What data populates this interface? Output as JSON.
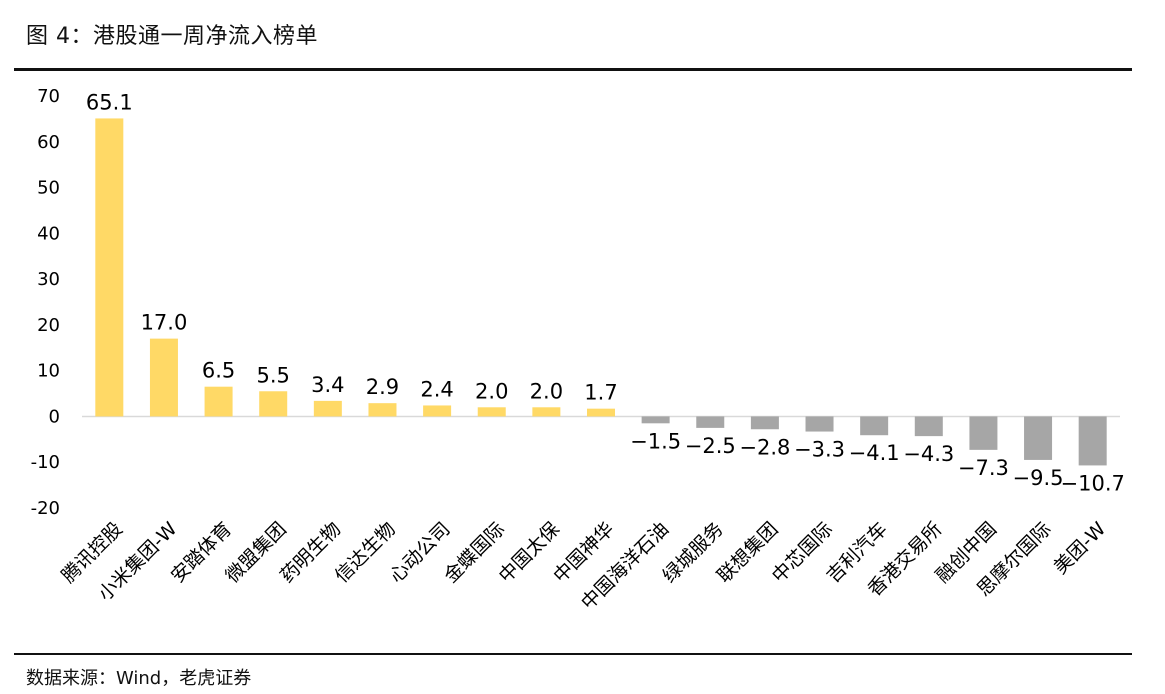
{
  "header": {
    "title": "图 4：港股通一周净流入榜单"
  },
  "footer": {
    "source": "数据来源：Wind，老虎证券"
  },
  "colors": {
    "positive": "#FFD966",
    "negative": "#A6A6A6",
    "axis": "#D9D9D9"
  },
  "chart_data": {
    "type": "bar",
    "title": "",
    "xlabel": "",
    "ylabel": "",
    "ylim": [
      -20,
      70
    ],
    "yticks": [
      70,
      60,
      50,
      40,
      30,
      20,
      10,
      0,
      -10,
      -20
    ],
    "grid": false,
    "legend": "none",
    "categories": [
      "腾讯控股",
      "小米集团-W",
      "安踏体育",
      "微盟集团",
      "药明生物",
      "信达生物",
      "心动公司",
      "金蝶国际",
      "中国太保",
      "中国神华",
      "中国海洋石油",
      "绿城服务",
      "联想集团",
      "中芯国际",
      "吉利汽车",
      "香港交易所",
      "融创中国",
      "思摩尔国际",
      "美团-W"
    ],
    "values": [
      65.1,
      17.0,
      6.5,
      5.5,
      3.4,
      2.9,
      2.4,
      2.0,
      2.0,
      1.7,
      -1.5,
      -2.5,
      -2.8,
      -3.3,
      -4.1,
      -4.3,
      -7.3,
      -9.5,
      -10.7
    ],
    "data_labels": [
      "65.1",
      "17.0",
      "6.5",
      "5.5",
      "3.4",
      "2.9",
      "2.4",
      "2.0",
      "2.0",
      "1.7",
      "−1.5",
      "−2.5",
      "−2.8",
      "−3.3",
      "−4.1",
      "−4.3",
      "−7.3",
      "−9.5",
      "−10.7"
    ]
  }
}
